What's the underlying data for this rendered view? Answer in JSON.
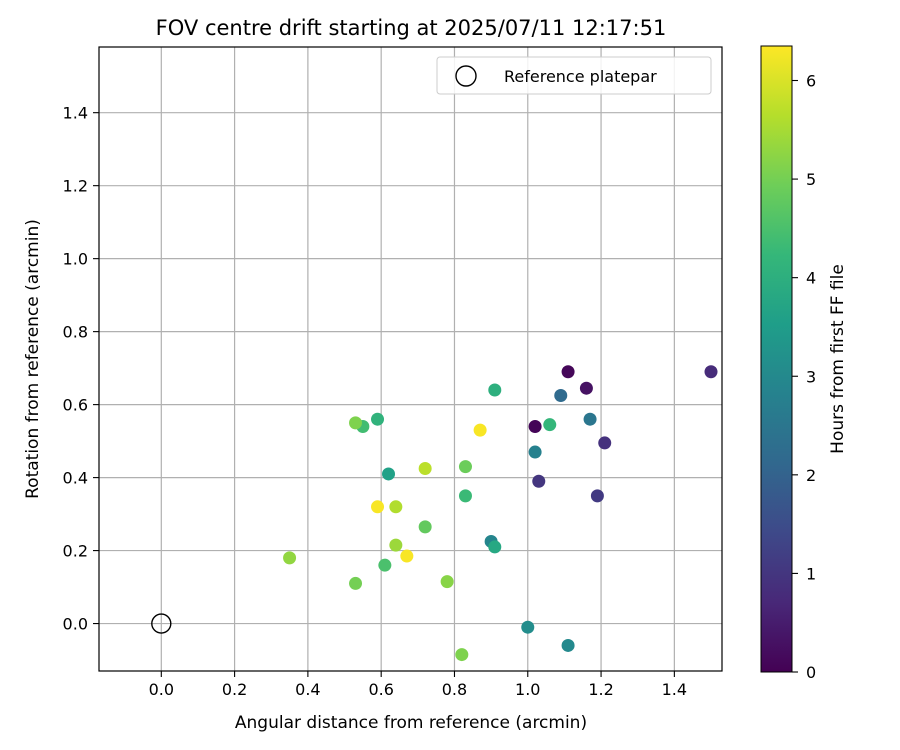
{
  "chart_data": {
    "type": "scatter",
    "title": "FOV centre drift starting at 2025/07/11 12:17:51",
    "xlabel": "Angular distance from reference (arcmin)",
    "ylabel": "Rotation from reference (arcmin)",
    "xlim": [
      -0.17,
      1.53
    ],
    "ylim": [
      -0.13,
      1.58
    ],
    "x_ticks": [
      0.0,
      0.2,
      0.4,
      0.6,
      0.8,
      1.0,
      1.2,
      1.4
    ],
    "x_tick_labels": [
      "0.0",
      "0.2",
      "0.4",
      "0.6",
      "0.8",
      "1.0",
      "1.2",
      "1.4"
    ],
    "y_ticks": [
      0.0,
      0.2,
      0.4,
      0.6,
      0.8,
      1.0,
      1.2,
      1.4
    ],
    "y_tick_labels": [
      "0.0",
      "0.2",
      "0.4",
      "0.6",
      "0.8",
      "1.0",
      "1.2",
      "1.4"
    ],
    "grid": true,
    "legend": {
      "position": "top-right",
      "entries": [
        "Reference platepar"
      ]
    },
    "reference_point": {
      "x": 0.0,
      "y": 0.0
    },
    "colorbar": {
      "label": "Hours from first FF file",
      "range": [
        0,
        6.35
      ],
      "ticks": [
        0,
        1,
        2,
        3,
        4,
        5,
        6
      ],
      "tick_labels": [
        "0",
        "1",
        "2",
        "3",
        "4",
        "5",
        "6"
      ],
      "colormap": "viridis"
    },
    "colormap_stops": [
      "#440154",
      "#482878",
      "#3e4989",
      "#31688e",
      "#26828e",
      "#1f9e89",
      "#35b779",
      "#6ece58",
      "#b5de2b",
      "#fde725"
    ],
    "points": [
      {
        "x": 1.11,
        "y": 0.69,
        "t": 0.1
      },
      {
        "x": 1.02,
        "y": 0.54,
        "t": 0.05
      },
      {
        "x": 1.16,
        "y": 0.645,
        "t": 0.3
      },
      {
        "x": 1.5,
        "y": 0.69,
        "t": 0.8
      },
      {
        "x": 1.21,
        "y": 0.495,
        "t": 0.9
      },
      {
        "x": 1.03,
        "y": 0.39,
        "t": 1.0
      },
      {
        "x": 1.19,
        "y": 0.35,
        "t": 1.1
      },
      {
        "x": 1.09,
        "y": 0.625,
        "t": 2.2
      },
      {
        "x": 1.17,
        "y": 0.56,
        "t": 2.5
      },
      {
        "x": 1.02,
        "y": 0.47,
        "t": 2.8
      },
      {
        "x": 0.9,
        "y": 0.225,
        "t": 2.9
      },
      {
        "x": 1.11,
        "y": -0.06,
        "t": 3.0
      },
      {
        "x": 1.0,
        "y": -0.01,
        "t": 3.1
      },
      {
        "x": 0.62,
        "y": 0.41,
        "t": 3.6
      },
      {
        "x": 0.91,
        "y": 0.21,
        "t": 3.8
      },
      {
        "x": 0.91,
        "y": 0.64,
        "t": 4.0
      },
      {
        "x": 0.59,
        "y": 0.56,
        "t": 4.1
      },
      {
        "x": 1.06,
        "y": 0.545,
        "t": 4.2
      },
      {
        "x": 0.83,
        "y": 0.35,
        "t": 4.3
      },
      {
        "x": 0.55,
        "y": 0.54,
        "t": 4.4
      },
      {
        "x": 0.61,
        "y": 0.16,
        "t": 4.5
      },
      {
        "x": 0.72,
        "y": 0.265,
        "t": 4.8
      },
      {
        "x": 0.83,
        "y": 0.43,
        "t": 4.9
      },
      {
        "x": 0.53,
        "y": 0.11,
        "t": 5.0
      },
      {
        "x": 0.53,
        "y": 0.55,
        "t": 5.1
      },
      {
        "x": 0.82,
        "y": -0.085,
        "t": 5.1
      },
      {
        "x": 0.78,
        "y": 0.115,
        "t": 5.2
      },
      {
        "x": 0.35,
        "y": 0.18,
        "t": 5.3
      },
      {
        "x": 0.64,
        "y": 0.215,
        "t": 5.4
      },
      {
        "x": 0.64,
        "y": 0.32,
        "t": 5.6
      },
      {
        "x": 0.72,
        "y": 0.425,
        "t": 5.7
      },
      {
        "x": 0.59,
        "y": 0.32,
        "t": 6.3
      },
      {
        "x": 0.67,
        "y": 0.185,
        "t": 6.3
      },
      {
        "x": 0.87,
        "y": 0.53,
        "t": 6.3
      }
    ]
  }
}
